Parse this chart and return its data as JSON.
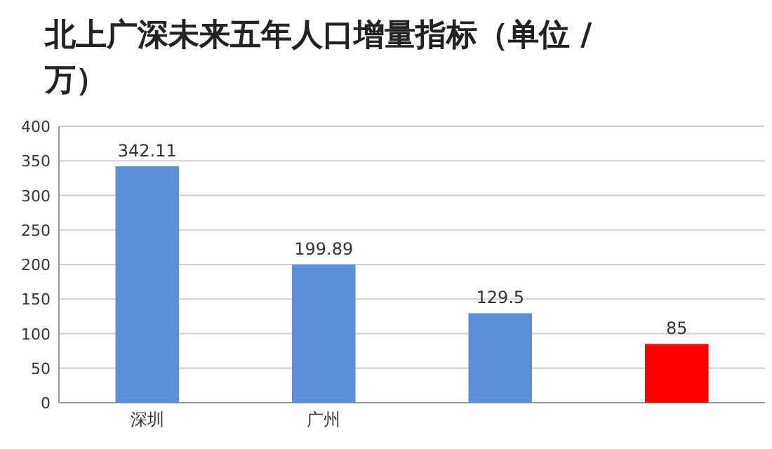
{
  "chart_data": {
    "type": "bar",
    "title": "北上广深未来五年人口增量指标（单位 / 万）",
    "categories": [
      "深圳",
      "广州",
      null,
      null
    ],
    "values": [
      342.11,
      199.89,
      129.5,
      85
    ],
    "colors": [
      "#5b8fd6",
      "#5b8fd6",
      "#5b8fd6",
      "#ff0000"
    ],
    "ylim": [
      0,
      400
    ],
    "yticks": [
      0,
      50,
      100,
      150,
      200,
      250,
      300,
      350,
      400
    ],
    "grid": "y",
    "data_labels": true
  }
}
